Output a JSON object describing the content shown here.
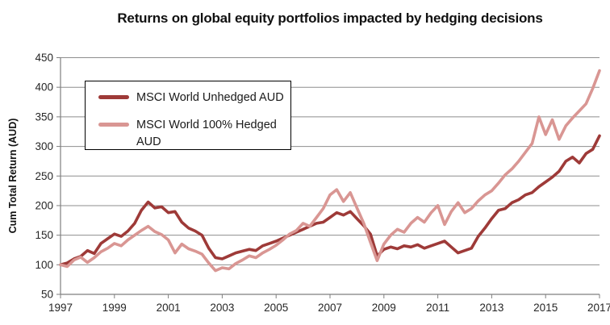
{
  "chart_data": {
    "type": "line",
    "title": "Returns on global equity portfolios impacted by hedging decisions",
    "xlabel": "",
    "ylabel": "Cum Total Return (AUD)",
    "ylim": [
      50,
      450
    ],
    "yticks": [
      50,
      100,
      150,
      200,
      250,
      300,
      350,
      400,
      450
    ],
    "xlim": [
      1997,
      2017
    ],
    "xticks": [
      1997,
      1999,
      2001,
      2003,
      2005,
      2007,
      2009,
      2011,
      2013,
      2015,
      2017
    ],
    "grid": "horizontal",
    "legend_position": "top-left-inside",
    "x": [
      1997.0,
      1997.25,
      1997.5,
      1997.75,
      1998.0,
      1998.25,
      1998.5,
      1998.75,
      1999.0,
      1999.25,
      1999.5,
      1999.75,
      2000.0,
      2000.25,
      2000.5,
      2000.75,
      2001.0,
      2001.25,
      2001.5,
      2001.75,
      2002.0,
      2002.25,
      2002.5,
      2002.75,
      2003.0,
      2003.25,
      2003.5,
      2003.75,
      2004.0,
      2004.25,
      2004.5,
      2004.75,
      2005.0,
      2005.25,
      2005.5,
      2005.75,
      2006.0,
      2006.25,
      2006.5,
      2006.75,
      2007.0,
      2007.25,
      2007.5,
      2007.75,
      2008.0,
      2008.25,
      2008.5,
      2008.75,
      2009.0,
      2009.25,
      2009.5,
      2009.75,
      2010.0,
      2010.25,
      2010.5,
      2010.75,
      2011.0,
      2011.25,
      2011.5,
      2011.75,
      2012.0,
      2012.25,
      2012.5,
      2012.75,
      2013.0,
      2013.25,
      2013.5,
      2013.75,
      2014.0,
      2014.25,
      2014.5,
      2014.75,
      2015.0,
      2015.25,
      2015.5,
      2015.75,
      2016.0,
      2016.25,
      2016.5,
      2016.75,
      2017.0
    ],
    "series": [
      {
        "name": "MSCI World Unhedged AUD",
        "color": "#9E3A38",
        "values": [
          100,
          103,
          110,
          114,
          124,
          119,
          136,
          144,
          152,
          148,
          157,
          170,
          192,
          206,
          196,
          198,
          188,
          190,
          172,
          162,
          157,
          150,
          128,
          112,
          110,
          115,
          120,
          123,
          126,
          124,
          132,
          136,
          140,
          145,
          150,
          155,
          160,
          165,
          170,
          172,
          180,
          188,
          184,
          190,
          178,
          166,
          152,
          115,
          126,
          130,
          127,
          132,
          130,
          134,
          128,
          132,
          136,
          140,
          130,
          120,
          124,
          128,
          148,
          162,
          178,
          192,
          195,
          205,
          210,
          218,
          222,
          232,
          240,
          248,
          258,
          275,
          282,
          272,
          288,
          295,
          318
        ]
      },
      {
        "name": "MSCI World 100% Hedged AUD",
        "color": "#D99693",
        "values": [
          100,
          97,
          108,
          113,
          104,
          112,
          122,
          128,
          136,
          132,
          142,
          150,
          158,
          165,
          156,
          151,
          142,
          120,
          135,
          127,
          123,
          118,
          103,
          90,
          95,
          93,
          102,
          108,
          115,
          112,
          120,
          126,
          133,
          142,
          152,
          158,
          170,
          165,
          180,
          195,
          218,
          227,
          207,
          222,
          196,
          170,
          138,
          107,
          135,
          150,
          160,
          155,
          170,
          180,
          172,
          188,
          200,
          168,
          190,
          205,
          188,
          195,
          208,
          218,
          225,
          238,
          252,
          262,
          275,
          290,
          305,
          350,
          320,
          345,
          312,
          335,
          348,
          360,
          372,
          398,
          428
        ]
      }
    ]
  },
  "style": {
    "gridline_color": "#8E8E8E",
    "axis_color": "#7F7F7F",
    "tick_text_color": "#262626",
    "background": "#FFFFFF"
  }
}
